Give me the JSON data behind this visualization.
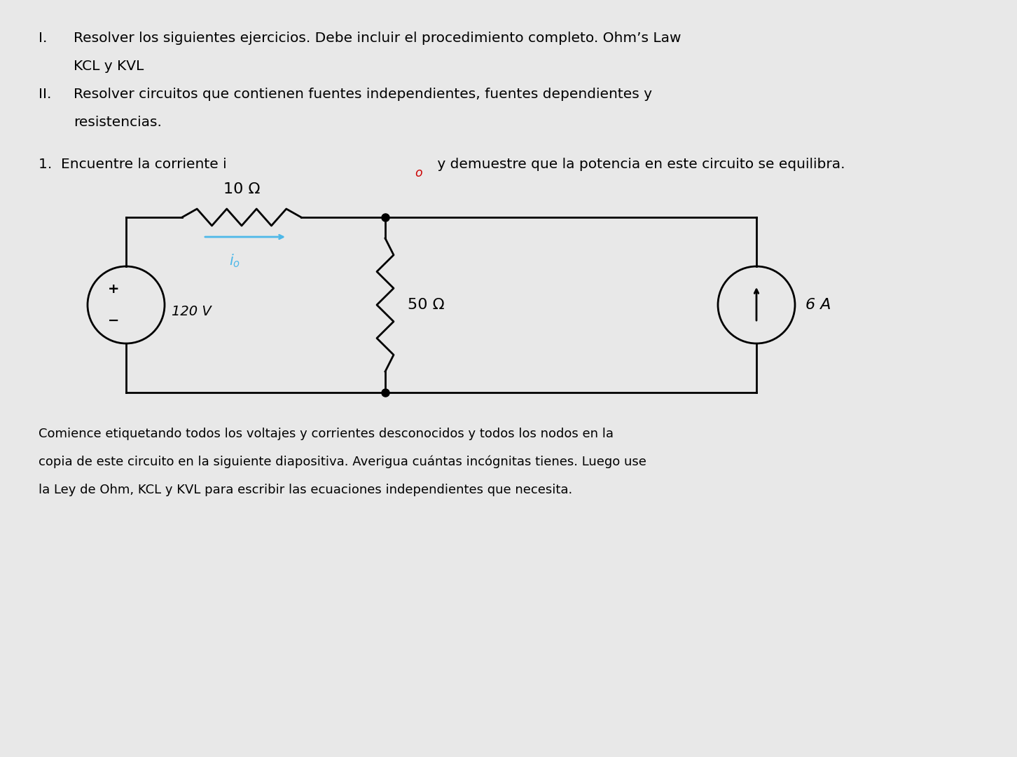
{
  "bg_color": "#e8e8e8",
  "text_color": "#000000",
  "title_line1": "I.    Resolver los siguientes ejercicios. Debe incluir el procedimiento completo. Ohm’s Law",
  "title_line2": "       KCL y KVL",
  "title_line3": "II.   Resolver circuitos que contienen fuentes independientes, fuentes dependientes y",
  "title_line4": "       resistencias.",
  "question_text": "1.  Encuentre la corriente i",
  "question_subscript": "o",
  "question_rest": " y demuestre que la potencia en este circuito se equilibra.",
  "bottom_text_line1": "Comience etiquetando todos los voltajes y corrientes desconocidos y todos los nodos en la",
  "bottom_text_line2": "copia de este circuito en la siguiente diapositiva. Averigua cuántas incógnitas tienes. Luego use",
  "bottom_text_line3": "la Ley de Ohm, KCL y KVL para escribir las ecuaciones independientes que necesita.",
  "voltage_source_label": "120 V",
  "resistor1_label": "10 Ω",
  "resistor2_label": "50 Ω",
  "current_source_label": "6 A",
  "current_label": "i",
  "current_subscript": "o",
  "arrow_color": "#4db8e8",
  "wire_color": "#000000",
  "component_color": "#000000"
}
